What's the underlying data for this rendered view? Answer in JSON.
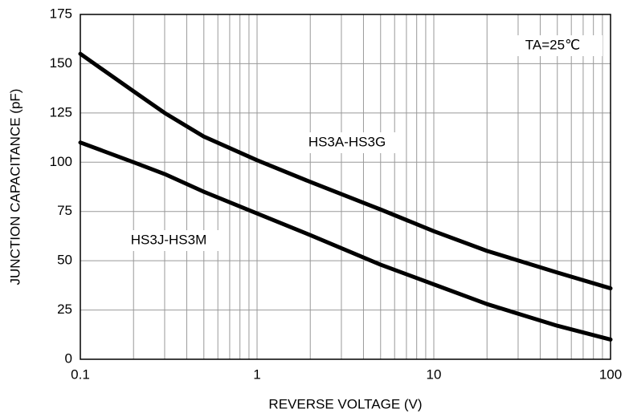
{
  "chart_data": {
    "type": "line",
    "x_label": "REVERSE VOLTAGE (V)",
    "y_label": "JUNCTION CAPACITANCE (pF)",
    "annotations": [
      "TA=25℃",
      "HS3A-HS3G",
      "HS3J-HS3M"
    ],
    "x": [
      0.1,
      0.2,
      0.3,
      0.5,
      1,
      2,
      5,
      10,
      20,
      50,
      100
    ],
    "series": [
      {
        "name": "HS3A-HS3G",
        "color": "#000000",
        "values": [
          155,
          136,
          125,
          113,
          101,
          90,
          76,
          65,
          55,
          44,
          36
        ]
      },
      {
        "name": "HS3J-HS3M",
        "color": "#000000",
        "values": [
          110,
          100,
          94,
          85,
          74,
          63,
          48,
          38,
          28,
          17,
          10
        ]
      }
    ],
    "xlog": true,
    "xlim": [
      0.1,
      100
    ],
    "xticks": [
      0.1,
      1,
      10,
      100
    ],
    "xminorticks": [
      0.2,
      0.3,
      0.4,
      0.5,
      0.6,
      0.7,
      0.8,
      0.9,
      2,
      3,
      4,
      5,
      6,
      7,
      8,
      9,
      20,
      30,
      40,
      50,
      60,
      70,
      80,
      90
    ],
    "ylim": [
      0,
      175
    ],
    "yticks": [
      0,
      25,
      50,
      75,
      100,
      125,
      150,
      175
    ],
    "grid": true
  }
}
